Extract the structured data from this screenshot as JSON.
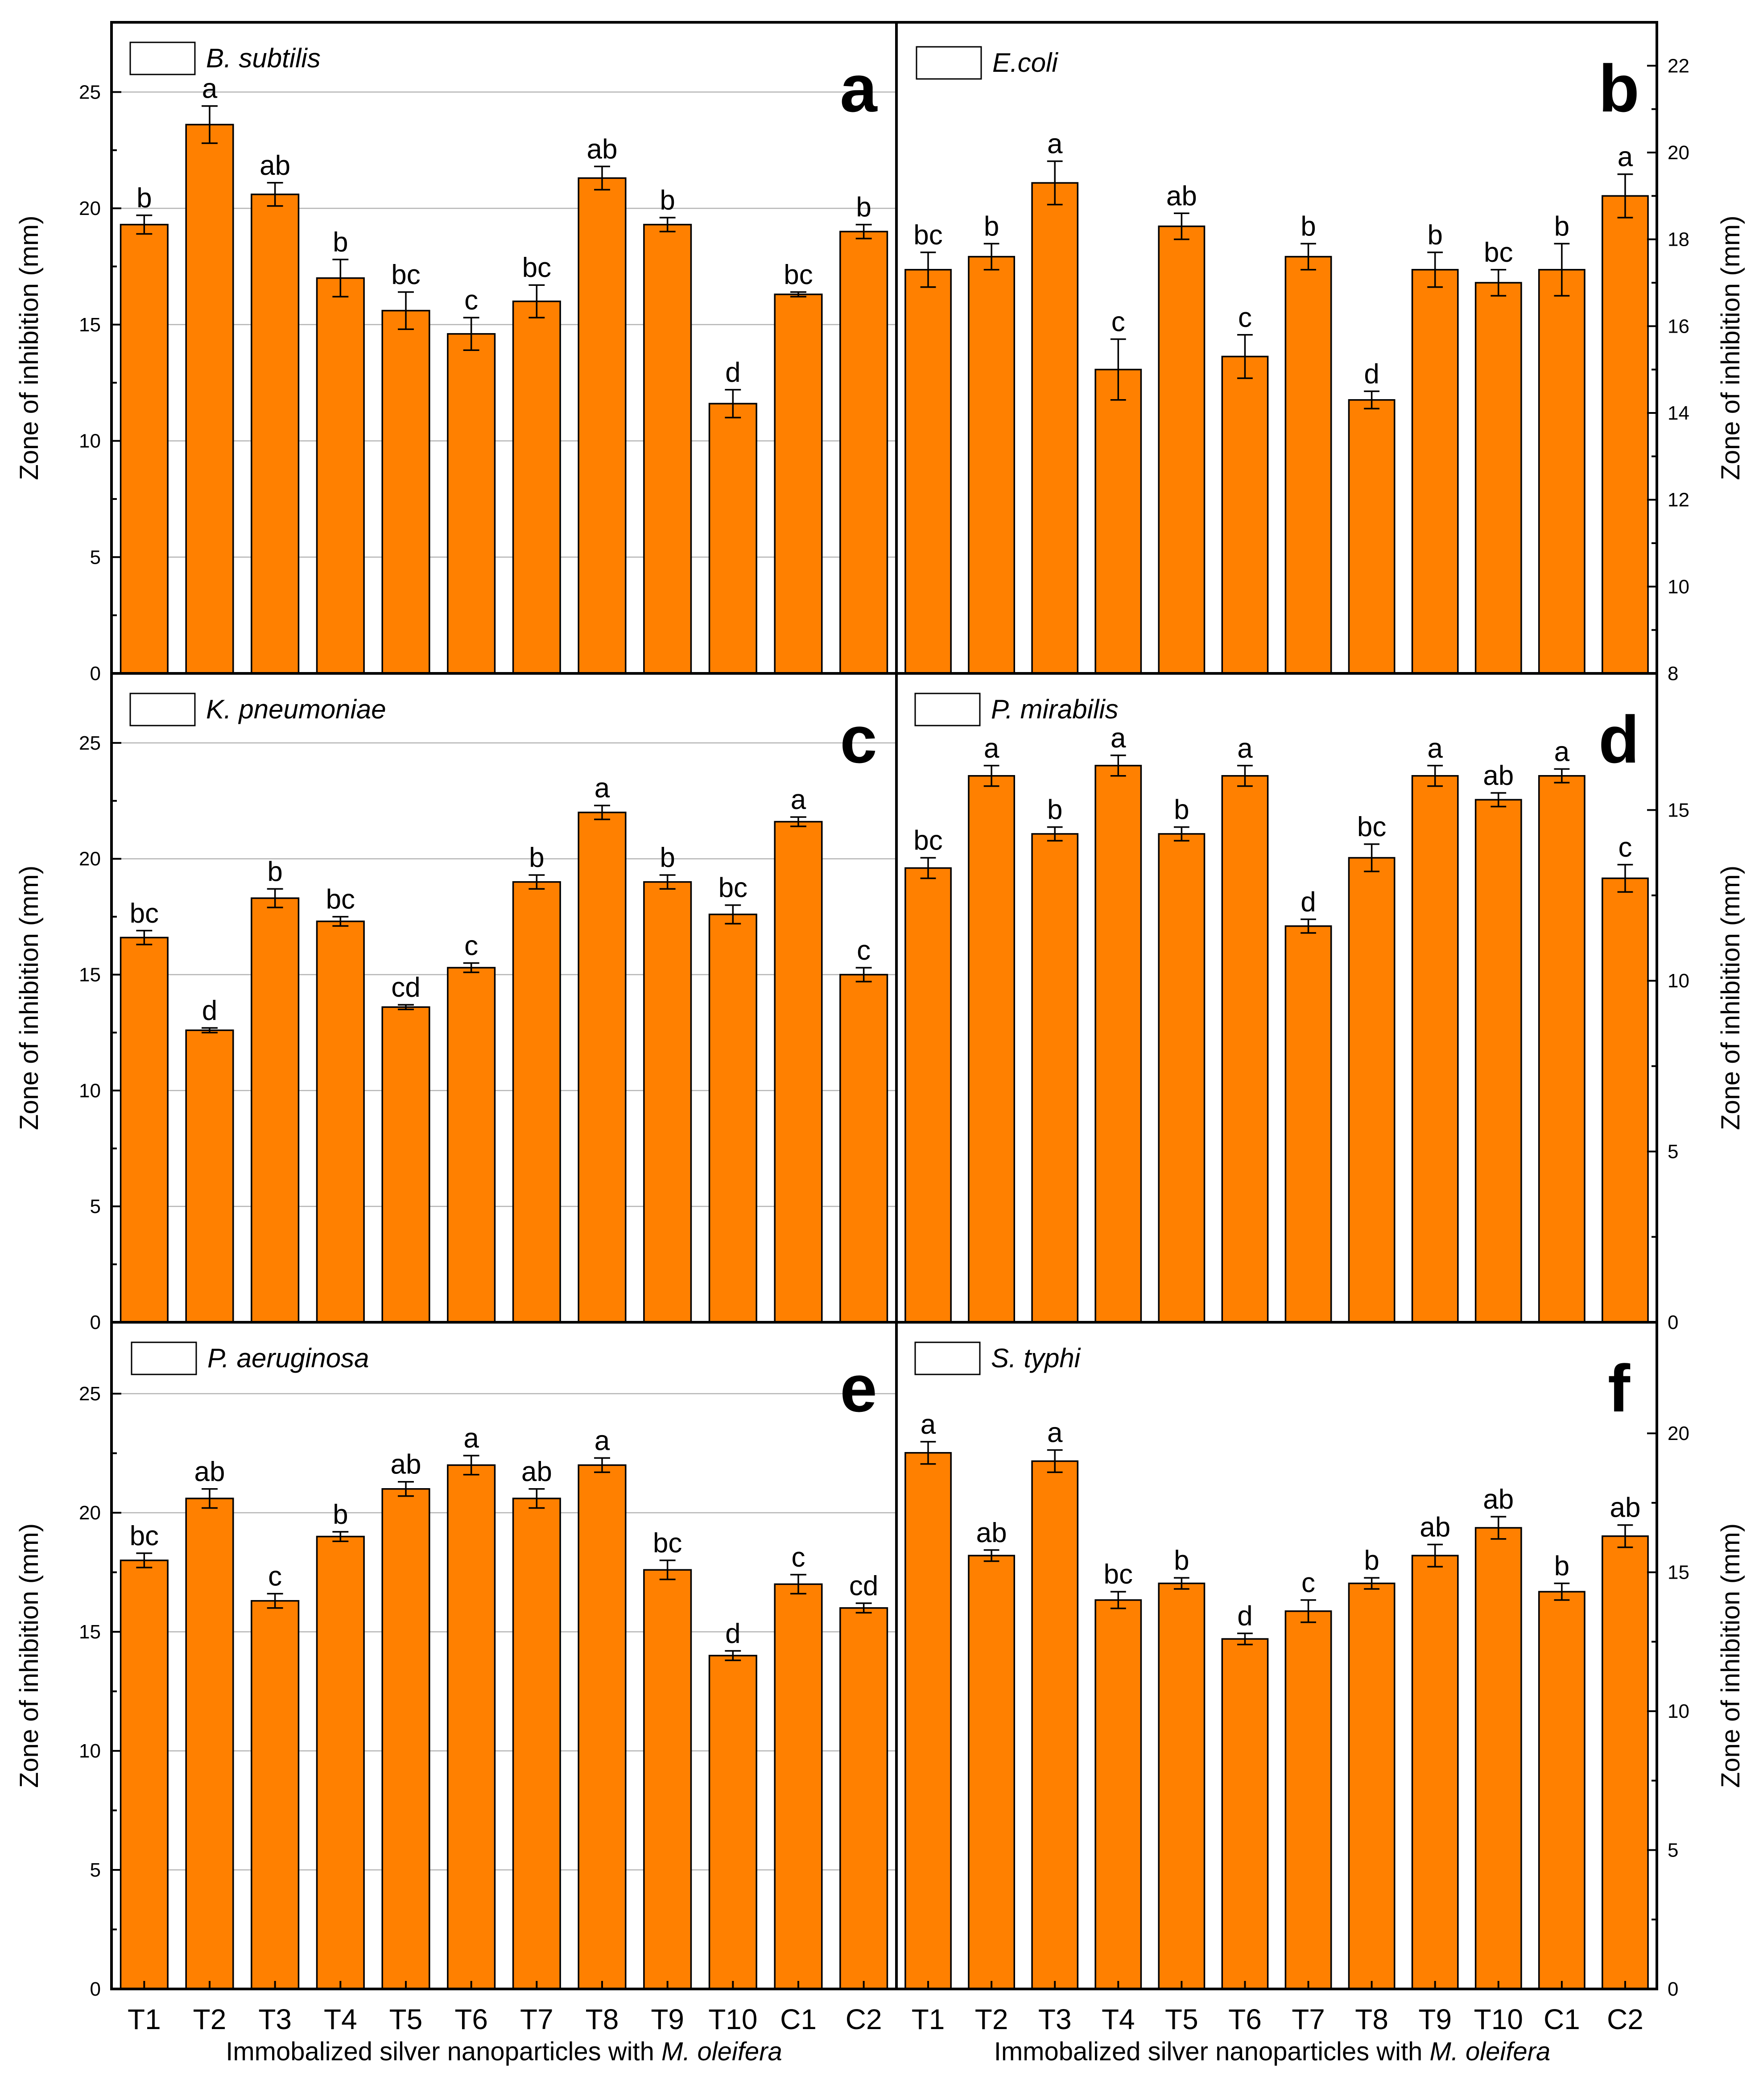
{
  "colors": {
    "bar_fill": "#ff8000",
    "bar_stroke": "#000000",
    "grid": "#b4b4b4",
    "frame": "#000000",
    "background": "#ffffff"
  },
  "figure": {
    "x_axis_title_prefix": "Immobalized silver nanoparticles with ",
    "x_axis_title_species": "M. oleifera",
    "y_axis_title": "Zone of inhibition (mm)",
    "categories": [
      "T1",
      "T2",
      "T3",
      "T4",
      "T5",
      "T6",
      "T7",
      "T8",
      "T9",
      "T10",
      "C1",
      "C2"
    ]
  },
  "chart_data": [
    {
      "type": "bar",
      "panel": "a",
      "legend": "B. subtilis",
      "ylabel": "Zone of inhibition (mm)",
      "ylim": [
        0,
        28
      ],
      "yticks": [
        0,
        5,
        10,
        15,
        20,
        25
      ],
      "y_axis_side": "left",
      "grid": true,
      "categories": [
        "T1",
        "T2",
        "T3",
        "T4",
        "T5",
        "T6",
        "T7",
        "T8",
        "T9",
        "T10",
        "C1",
        "C2"
      ],
      "values": [
        19.3,
        23.6,
        20.6,
        17.0,
        15.6,
        14.6,
        16.0,
        21.3,
        19.3,
        11.6,
        16.3,
        19.0
      ],
      "errors": [
        0.4,
        0.8,
        0.5,
        0.8,
        0.8,
        0.7,
        0.7,
        0.5,
        0.3,
        0.6,
        0.1,
        0.3
      ],
      "significance": [
        "b",
        "a",
        "ab",
        "b",
        "bc",
        "c",
        "bc",
        "ab",
        "b",
        "d",
        "bc",
        "b"
      ]
    },
    {
      "type": "bar",
      "panel": "b",
      "legend": "E.coli",
      "ylabel": "Zone of inhibition (mm)",
      "ylim": [
        8,
        23
      ],
      "yticks": [
        8,
        10,
        12,
        14,
        16,
        18,
        20,
        22
      ],
      "y_axis_side": "right",
      "grid": false,
      "categories": [
        "T1",
        "T2",
        "T3",
        "T4",
        "T5",
        "T6",
        "T7",
        "T8",
        "T9",
        "T10",
        "C1",
        "C2"
      ],
      "values": [
        17.3,
        17.6,
        19.3,
        15.0,
        18.3,
        15.3,
        17.6,
        14.3,
        17.3,
        17.0,
        17.3,
        19.0
      ],
      "errors": [
        0.4,
        0.3,
        0.5,
        0.7,
        0.3,
        0.5,
        0.3,
        0.2,
        0.4,
        0.3,
        0.6,
        0.5
      ],
      "significance": [
        "bc",
        "b",
        "a",
        "c",
        "ab",
        "c",
        "b",
        "d",
        "b",
        "bc",
        "b",
        "a"
      ]
    },
    {
      "type": "bar",
      "panel": "c",
      "legend": "K. pneumoniae",
      "ylabel": "Zone of inhibition (mm)",
      "ylim": [
        0,
        28
      ],
      "yticks": [
        0,
        5,
        10,
        15,
        20,
        25
      ],
      "y_axis_side": "left",
      "grid": true,
      "categories": [
        "T1",
        "T2",
        "T3",
        "T4",
        "T5",
        "T6",
        "T7",
        "T8",
        "T9",
        "T10",
        "C1",
        "C2"
      ],
      "values": [
        16.6,
        12.6,
        18.3,
        17.3,
        13.6,
        15.3,
        19.0,
        22.0,
        19.0,
        17.6,
        21.6,
        15.0
      ],
      "errors": [
        0.3,
        0.1,
        0.4,
        0.2,
        0.1,
        0.2,
        0.3,
        0.3,
        0.3,
        0.4,
        0.2,
        0.3
      ],
      "significance": [
        "bc",
        "d",
        "b",
        "bc",
        "cd",
        "c",
        "b",
        "a",
        "b",
        "bc",
        "a",
        "c"
      ]
    },
    {
      "type": "bar",
      "panel": "d",
      "legend": "P. mirabilis",
      "ylabel": "Zone of inhibition (mm)",
      "ylim": [
        0,
        19
      ],
      "yticks": [
        0,
        5,
        10,
        15
      ],
      "y_axis_side": "right",
      "grid": false,
      "categories": [
        "T1",
        "T2",
        "T3",
        "T4",
        "T5",
        "T6",
        "T7",
        "T8",
        "T9",
        "T10",
        "C1",
        "C2"
      ],
      "values": [
        13.3,
        16.0,
        14.3,
        16.3,
        14.3,
        16.0,
        11.6,
        13.6,
        16.0,
        15.3,
        16.0,
        13.0
      ],
      "errors": [
        0.3,
        0.3,
        0.2,
        0.3,
        0.2,
        0.3,
        0.2,
        0.4,
        0.3,
        0.2,
        0.2,
        0.4
      ],
      "significance": [
        "bc",
        "a",
        "b",
        "a",
        "b",
        "a",
        "d",
        "bc",
        "a",
        "ab",
        "a",
        "c"
      ]
    },
    {
      "type": "bar",
      "panel": "e",
      "legend": "P. aeruginosa",
      "ylabel": "Zone of inhibition (mm)",
      "ylim": [
        0,
        28
      ],
      "yticks": [
        0,
        5,
        10,
        15,
        20,
        25
      ],
      "y_axis_side": "left",
      "grid": true,
      "categories": [
        "T1",
        "T2",
        "T3",
        "T4",
        "T5",
        "T6",
        "T7",
        "T8",
        "T9",
        "T10",
        "C1",
        "C2"
      ],
      "values": [
        18.0,
        20.6,
        16.3,
        19.0,
        21.0,
        22.0,
        20.6,
        22.0,
        17.6,
        14.0,
        17.0,
        16.0
      ],
      "errors": [
        0.3,
        0.4,
        0.3,
        0.2,
        0.3,
        0.4,
        0.4,
        0.3,
        0.4,
        0.2,
        0.4,
        0.2
      ],
      "significance": [
        "bc",
        "ab",
        "c",
        "b",
        "ab",
        "a",
        "ab",
        "a",
        "bc",
        "d",
        "c",
        "cd"
      ]
    },
    {
      "type": "bar",
      "panel": "f",
      "legend": "S. typhi",
      "ylabel": "Zone of inhibition (mm)",
      "ylim": [
        0,
        24
      ],
      "yticks": [
        0,
        5,
        10,
        15,
        20
      ],
      "y_axis_side": "right",
      "grid": false,
      "categories": [
        "T1",
        "T2",
        "T3",
        "T4",
        "T5",
        "T6",
        "T7",
        "T8",
        "T9",
        "T10",
        "C1",
        "C2"
      ],
      "values": [
        19.3,
        15.6,
        19.0,
        14.0,
        14.6,
        12.6,
        13.6,
        14.6,
        15.6,
        16.6,
        14.3,
        16.3
      ],
      "errors": [
        0.4,
        0.2,
        0.4,
        0.3,
        0.2,
        0.2,
        0.4,
        0.2,
        0.4,
        0.4,
        0.3,
        0.4
      ],
      "significance": [
        "a",
        "ab",
        "a",
        "bc",
        "b",
        "d",
        "c",
        "b",
        "ab",
        "ab",
        "b",
        "ab"
      ]
    }
  ]
}
